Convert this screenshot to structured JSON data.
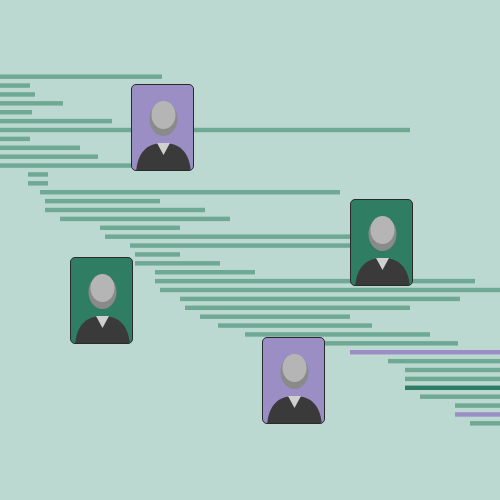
{
  "chart_data": {
    "type": "bar",
    "orientation": "horizontal",
    "tick_labels": false,
    "xlim": [
      0,
      500
    ],
    "categories": [
      null,
      null,
      null,
      null,
      null,
      null,
      null,
      null,
      null,
      null,
      null,
      null,
      null,
      null,
      null,
      null,
      null,
      null,
      null,
      null,
      null,
      null,
      null,
      null,
      null,
      null,
      null,
      null,
      null,
      null,
      null,
      null,
      null,
      null,
      null,
      null,
      null,
      null,
      null,
      null
    ],
    "x_start": [
      0,
      0,
      0,
      0,
      0,
      0,
      0,
      0,
      0,
      0,
      0,
      28,
      28,
      40,
      45,
      45,
      60,
      100,
      105,
      130,
      135,
      135,
      155,
      155,
      160,
      180,
      185,
      200,
      218,
      245,
      300,
      350,
      388,
      405,
      405,
      405,
      420,
      455,
      455,
      470
    ],
    "x_end": [
      162,
      30,
      35,
      63,
      32,
      112,
      410,
      30,
      80,
      98,
      158,
      48,
      48,
      340,
      160,
      205,
      230,
      180,
      350,
      350,
      180,
      220,
      255,
      475,
      500,
      460,
      410,
      350,
      372,
      430,
      458,
      500,
      500,
      500,
      500,
      500,
      500,
      500,
      500,
      500
    ],
    "colors": [
      "#6fa893",
      "#6fa893",
      "#6fa893",
      "#6fa893",
      "#6fa893",
      "#6fa893",
      "#6fa893",
      "#6fa893",
      "#6fa893",
      "#6fa893",
      "#6fa893",
      "#6fa893",
      "#6fa893",
      "#6fa893",
      "#6fa893",
      "#6fa893",
      "#6fa893",
      "#6fa893",
      "#6fa893",
      "#6fa893",
      "#6fa893",
      "#6fa893",
      "#6fa893",
      "#6fa893",
      "#6fa893",
      "#6fa893",
      "#6fa893",
      "#6fa893",
      "#6fa893",
      "#6fa893",
      "#6fa893",
      "#9b8ec4",
      "#6fa893",
      "#6fa893",
      "#6fa893",
      "#2f7d62",
      "#6fa893",
      "#6fa893",
      "#9b8ec4",
      "#6fa893"
    ]
  }
}
